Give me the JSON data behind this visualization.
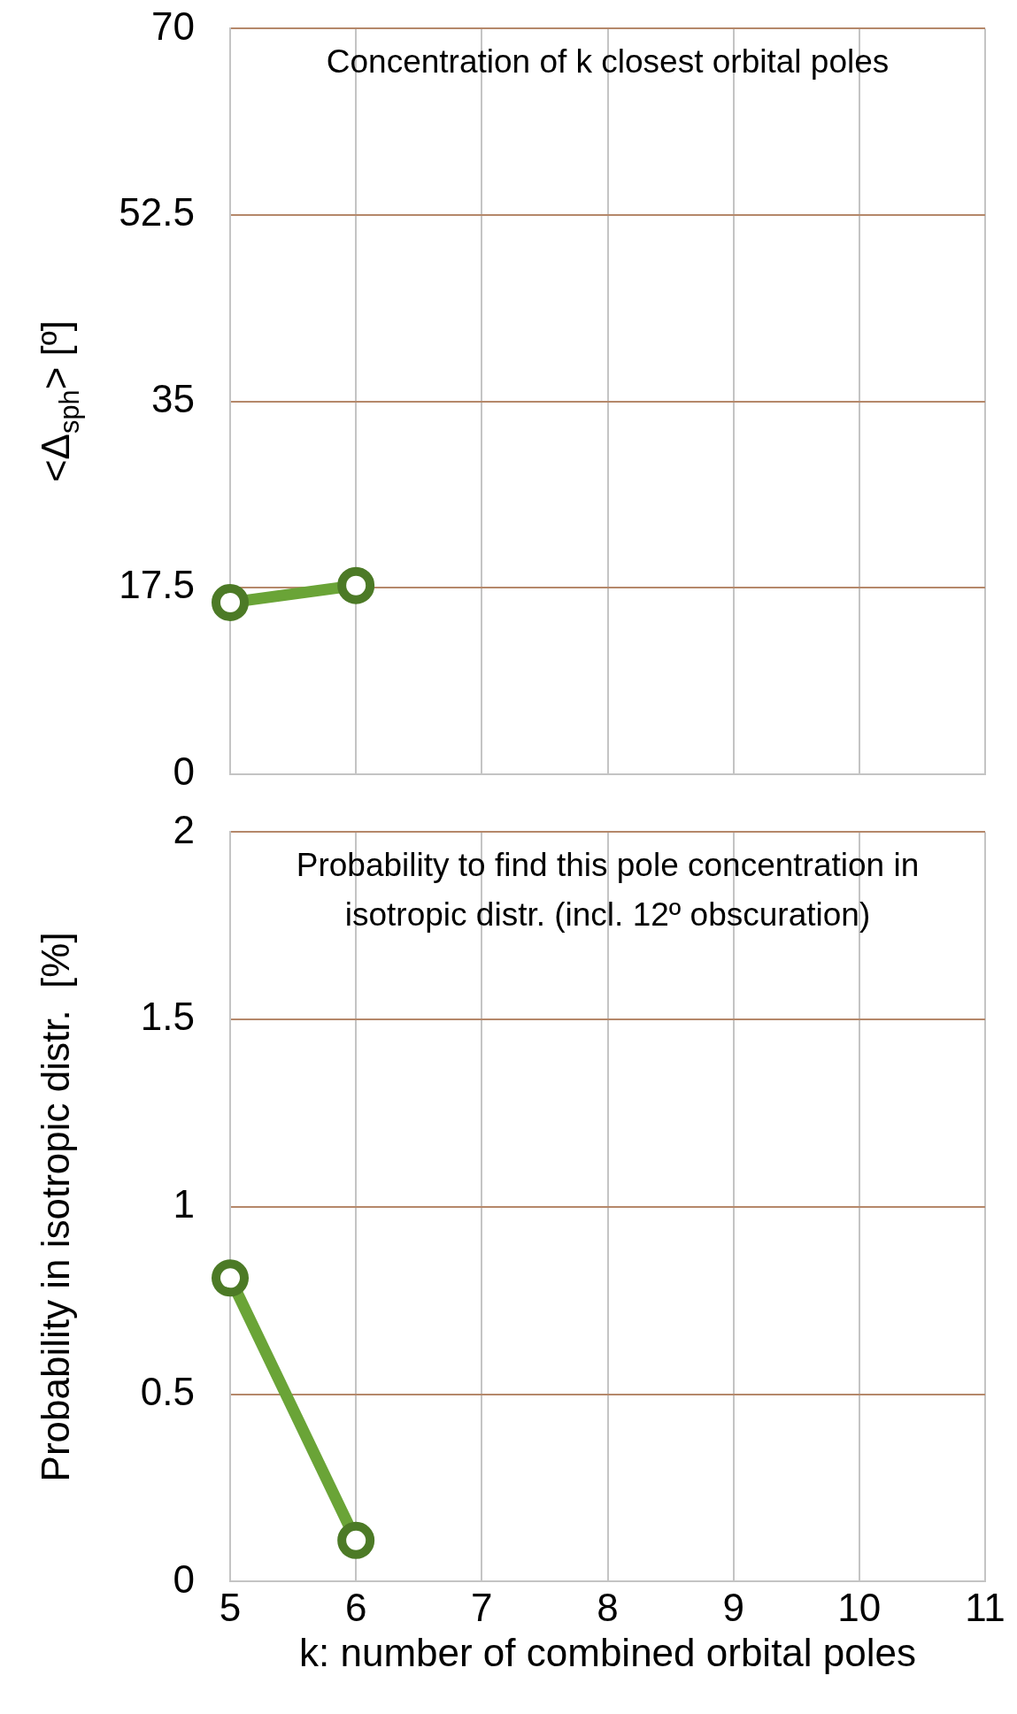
{
  "chart_data": [
    {
      "type": "line",
      "title": "Concentration of k closest orbital poles",
      "ylabel": "<Δ$_{sph}$> [º]",
      "categories": [
        "5",
        "6",
        "7",
        "8",
        "9",
        "10",
        "11"
      ],
      "ylim": [
        0,
        70
      ],
      "yticks": [
        0,
        17.5,
        35,
        52.5,
        70
      ],
      "tick_labels": "y",
      "grid": true,
      "marker": "circle",
      "series": [
        {
          "color": "#6aa437",
          "values": [
            16.1,
            17.7,
            null,
            null,
            null,
            null,
            null
          ]
        }
      ]
    },
    {
      "type": "line",
      "title": "Probability to find this pole concentration in isotropic distr. (incl. 12º obscuration)",
      "ylabel": "Probability in isotropic distr.  [%]",
      "xlabel": "k: number of combined orbital poles",
      "categories": [
        "5",
        "6",
        "7",
        "8",
        "9",
        "10",
        "11"
      ],
      "ylim": [
        0,
        2
      ],
      "yticks": [
        0,
        0.5,
        1,
        1.5,
        2
      ],
      "grid": true,
      "marker": "circle",
      "series": [
        {
          "color": "#6aa437",
          "values": [
            0.81,
            0.11,
            null,
            null,
            null,
            null,
            null
          ]
        }
      ]
    }
  ]
}
